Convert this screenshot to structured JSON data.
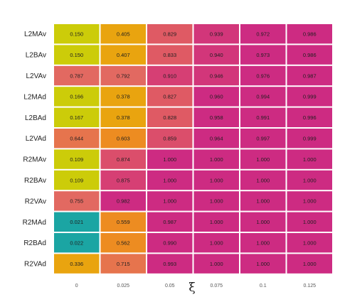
{
  "chart_data": {
    "type": "heatmap",
    "xlabel": "ξ",
    "ylabel": "",
    "x_categories": [
      "0",
      "0.025",
      "0.05",
      "0.075",
      "0.1",
      "0.125"
    ],
    "y_categories": [
      "L2MAv",
      "L2BAv",
      "L2VAv",
      "L2MAd",
      "L2BAd",
      "L2VAd",
      "R2MAv",
      "R2BAv",
      "R2VAv",
      "R2MAd",
      "R2BAd",
      "R2VAd"
    ],
    "values": [
      [
        "0.150",
        "0.405",
        "0.829",
        "0.939",
        "0.972",
        "0.986"
      ],
      [
        "0.150",
        "0.407",
        "0.833",
        "0.940",
        "0.973",
        "0.986"
      ],
      [
        "0.787",
        "0.792",
        "0.910",
        "0.946",
        "0.976",
        "0.987"
      ],
      [
        "0.166",
        "0.378",
        "0.827",
        "0.960",
        "0.994",
        "0.999"
      ],
      [
        "0.167",
        "0.378",
        "0.828",
        "0.958",
        "0.991",
        "0.996"
      ],
      [
        "0.644",
        "0.603",
        "0.859",
        "0.964",
        "0.997",
        "0.999"
      ],
      [
        "0.109",
        "0.874",
        "1.000",
        "1.000",
        "1.000",
        "1.000"
      ],
      [
        "0.109",
        "0.875",
        "1.000",
        "1.000",
        "1.000",
        "1.000"
      ],
      [
        "0.755",
        "0.982",
        "1.000",
        "1.000",
        "1.000",
        "1.000"
      ],
      [
        "0.021",
        "0.559",
        "0.987",
        "1.000",
        "1.000",
        "1.000"
      ],
      [
        "0.022",
        "0.562",
        "0.990",
        "1.000",
        "1.000",
        "1.000"
      ],
      [
        "0.336",
        "0.715",
        "0.993",
        "1.000",
        "1.000",
        "1.000"
      ]
    ],
    "color_scale": [
      {
        "max": 0.05,
        "color": "#1ba5a3"
      },
      {
        "max": 0.2,
        "color": "#cccc09"
      },
      {
        "max": 0.45,
        "color": "#e9a40f"
      },
      {
        "max": 0.62,
        "color": "#ed8c21"
      },
      {
        "max": 0.75,
        "color": "#e6744d"
      },
      {
        "max": 0.8,
        "color": "#e26961"
      },
      {
        "max": 0.84,
        "color": "#df5a64"
      },
      {
        "max": 0.875,
        "color": "#db4e6b"
      },
      {
        "max": 0.92,
        "color": "#d63f74"
      },
      {
        "max": 0.95,
        "color": "#d2367a"
      },
      {
        "max": 1.01,
        "color": "#cd2b82"
      }
    ],
    "grid": false,
    "legend": "none"
  }
}
